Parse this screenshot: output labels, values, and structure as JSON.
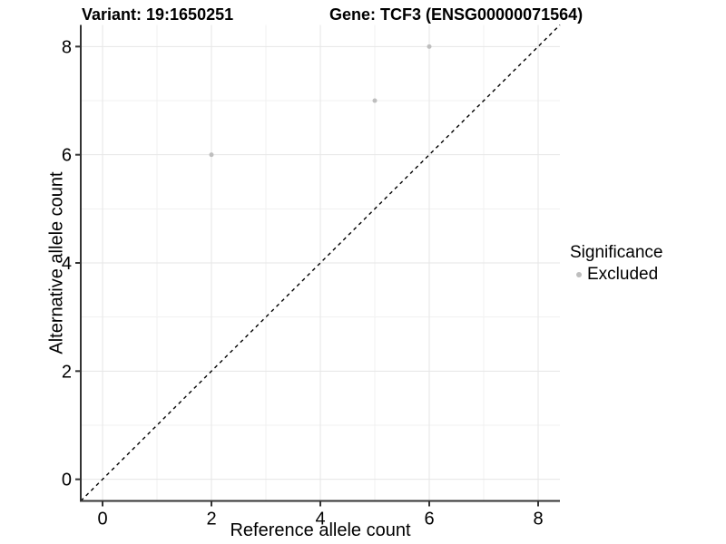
{
  "chart_data": {
    "type": "scatter",
    "titles": {
      "left": "Variant: 19:1650251",
      "right": "Gene: TCF3 (ENSG00000071564)"
    },
    "xlabel": "Reference allele count",
    "ylabel": "Alternative allele count",
    "xlim": [
      -0.4,
      8.4
    ],
    "ylim": [
      -0.4,
      8.4
    ],
    "x_ticks": [
      0,
      2,
      4,
      6,
      8
    ],
    "y_ticks": [
      0,
      2,
      4,
      6,
      8
    ],
    "x_minor": [
      1,
      3,
      5,
      7
    ],
    "y_minor": [
      1,
      3,
      5,
      7
    ],
    "grid": "major+minor",
    "series": [
      {
        "name": "Excluded",
        "color": "#bebebe",
        "point_radius": 2.5,
        "points": [
          [
            2,
            6
          ],
          [
            5,
            7
          ],
          [
            6,
            8
          ]
        ]
      }
    ],
    "identity_line": {
      "from": [
        -0.4,
        -0.4
      ],
      "to": [
        8.4,
        8.4
      ],
      "style": "dashed",
      "color": "#000000"
    },
    "legend": {
      "position": "right",
      "title": "Significance",
      "items": [
        {
          "label": "Excluded",
          "color": "#bebebe"
        }
      ]
    },
    "colors": {
      "background": "#ffffff",
      "grid_major": "#e6e6e6",
      "grid_minor": "#f1f1f1",
      "axis_line": "#333333",
      "tick": "#333333",
      "text": "#000000"
    }
  }
}
